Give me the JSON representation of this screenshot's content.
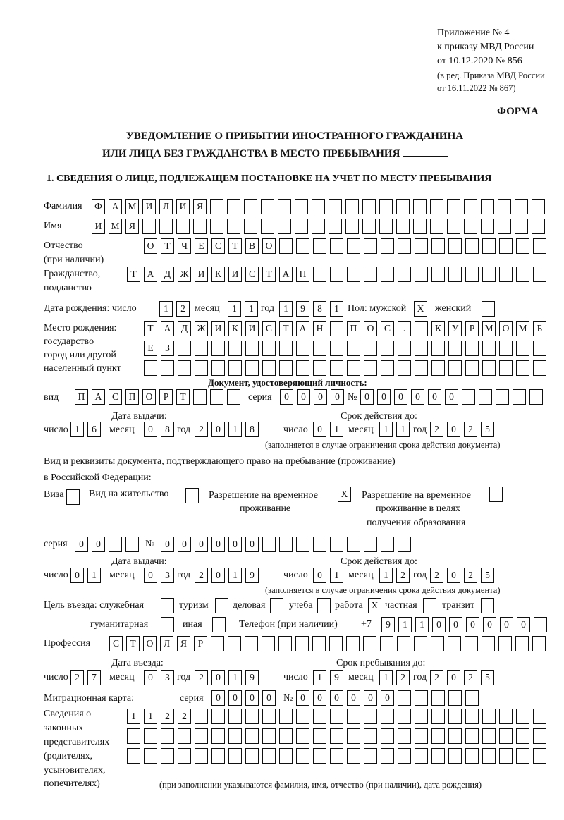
{
  "header": {
    "appendix": "Приложение № 4",
    "order": "к приказу МВД России",
    "order_date": "от 10.12.2020 № 856",
    "revision_1": "(в ред. Приказа МВД России",
    "revision_2": "от 16.11.2022 № 867)",
    "form_label": "ФОРМА",
    "title_1": "УВЕДОМЛЕНИЕ О ПРИБЫТИИ ИНОСТРАННОГО ГРАЖДАНИНА",
    "title_2": "ИЛИ ЛИЦА БЕЗ ГРАЖДАНСТВА В МЕСТО ПРЕБЫВАНИЯ",
    "section_1": "1. СВЕДЕНИЯ О ЛИЦЕ, ПОДЛЕЖАЩЕМ ПОСТАНОВКЕ НА УЧЕТ ПО МЕСТУ ПРЕБЫВАНИЯ"
  },
  "labels": {
    "surname": "Фамилия",
    "name": "Имя",
    "patronymic_1": "Отчество",
    "patronymic_2": "(при наличии)",
    "citizenship_1": "Гражданство,",
    "citizenship_2": "подданство",
    "birth_date": "Дата рождения:  число",
    "month": "месяц",
    "year": "год",
    "day": "число",
    "sex": "Пол: мужской",
    "female": "женский",
    "birthplace_1": "Место рождения:",
    "birthplace_2": "государство",
    "birthplace_3": "город или другой",
    "birthplace_4": "населенный пункт",
    "id_doc": "Документ, удостоверяющий личность:",
    "kind": "вид",
    "series": "серия",
    "number_sign": "№",
    "issue_date": "Дата выдачи:",
    "valid_until": "Срок действия до:",
    "validity_note": "(заполняется в случае ограничения срока действия документа)",
    "right_doc_1": "Вид и реквизиты документа, подтверждающего право на пребывание (проживание)",
    "right_doc_2": "в Российской Федерации:",
    "visa": "Виза",
    "residence_permit": "Вид на жительство",
    "temp_permit_1": "Разрешение на временное",
    "temp_permit_2": "проживание",
    "temp_edu_1": "Разрешение на временное",
    "temp_edu_2": "проживание в целях",
    "temp_edu_3": "получения образования",
    "purpose": "Цель въезда: служебная",
    "tourism": "туризм",
    "business": "деловая",
    "study": "учеба",
    "work": "работа",
    "private": "частная",
    "transit": "транзит",
    "humanitarian": "гуманитарная",
    "other": "иная",
    "phone": "Телефон (при наличии)",
    "phone_prefix": "+7",
    "profession": "Профессия",
    "entry_date": "Дата въезда:",
    "stay_until": "Срок пребывания до:",
    "migration_card": "Миграционная карта:",
    "reps_1": "Сведения о",
    "reps_2": "законных",
    "reps_3": "представителях",
    "reps_4": "(родителях,",
    "reps_5": "усыновителях,",
    "reps_6": "попечителях)",
    "reps_note": "(при заполнении указываются фамилия, имя, отчество (при наличии), дата рождения)"
  },
  "person": {
    "surname": "ФАМИЛИЯ",
    "name": "ИМЯ",
    "patronymic": "ОТЧЕСТВО",
    "citizenship": "ТАДЖИКИСТАН",
    "birth_day": "12",
    "birth_month": "11",
    "birth_year": "1981",
    "male": "X",
    "female": "",
    "birthplace_1": "ТАДЖИКИСТАН ПОС. КУРМОМБ",
    "birthplace_2": "ЕЗ",
    "birthplace_3": ""
  },
  "id_document": {
    "kind": "ПАСПОРТ",
    "series": "0000",
    "number": "000000",
    "issue_day": "16",
    "issue_month": "08",
    "issue_year": "2018",
    "valid_day": "01",
    "valid_month": "11",
    "valid_year": "2025"
  },
  "right_document": {
    "visa": "",
    "residence_permit": "",
    "temp_permit": "X",
    "temp_edu": "",
    "series": "00",
    "number": "000000",
    "issue_day": "01",
    "issue_month": "03",
    "issue_year": "2019",
    "valid_day": "01",
    "valid_month": "12",
    "valid_year": "2025"
  },
  "purpose": {
    "official": "",
    "tourism": "",
    "business": "",
    "study": "",
    "work": "X",
    "private": "",
    "transit": "",
    "humanitarian": "",
    "other": ""
  },
  "phone": "911000000",
  "profession": "СТОЛЯР",
  "entry": {
    "day": "27",
    "month": "03",
    "year": "2019",
    "stay_day": "19",
    "stay_month": "12",
    "stay_year": "2025"
  },
  "migration_card": {
    "series": "0000",
    "number": "000000"
  },
  "representatives": {
    "row_1": "1122",
    "row_2": "",
    "row_3": ""
  }
}
